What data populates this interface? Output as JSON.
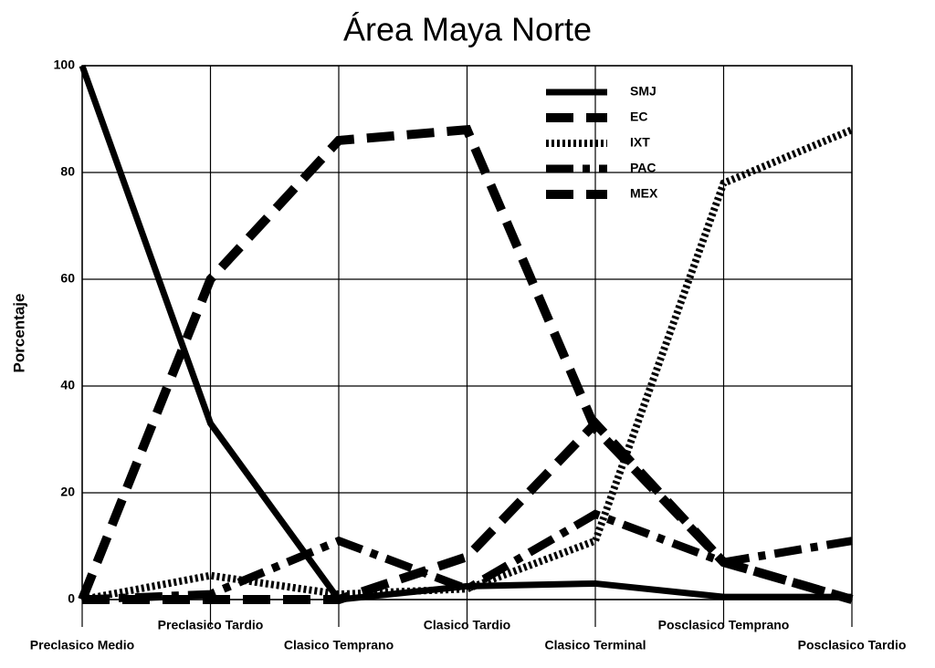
{
  "chart_data": {
    "type": "line",
    "title": "Área Maya Norte",
    "y_label": "Porcentaje",
    "categories": [
      "Preclasico Medio",
      "Preclasico Tardio",
      "Clasico Temprano",
      "Clasico Tardio",
      "Clasico Terminal",
      "Posclasico Temprano",
      "Posclasico Tardio"
    ],
    "series": [
      {
        "name": "SMJ",
        "color": "#000000",
        "line_style": "solid",
        "values": [
          100,
          33,
          0,
          2.5,
          3,
          0.5,
          0.5
        ]
      },
      {
        "name": "EC",
        "color": "#000000",
        "line_style": "dashed",
        "values": [
          0,
          60,
          86,
          88,
          32,
          7,
          0
        ]
      },
      {
        "name": "IXT",
        "color": "#000000",
        "line_style": "dotted",
        "values": [
          0,
          4.5,
          1,
          2,
          11,
          78,
          88
        ]
      },
      {
        "name": "PAC",
        "color": "#000000",
        "line_style": "dashdot",
        "values": [
          0,
          1,
          11,
          2,
          16,
          7,
          11
        ]
      },
      {
        "name": "MEX",
        "color": "#000000",
        "line_style": "dashed",
        "values": [
          0,
          0,
          0,
          8,
          33,
          7,
          0
        ]
      }
    ],
    "ylim": [
      0,
      100
    ],
    "yticks": [
      0,
      20,
      40,
      60,
      80,
      100
    ],
    "grid": true,
    "legend": "upper right"
  }
}
